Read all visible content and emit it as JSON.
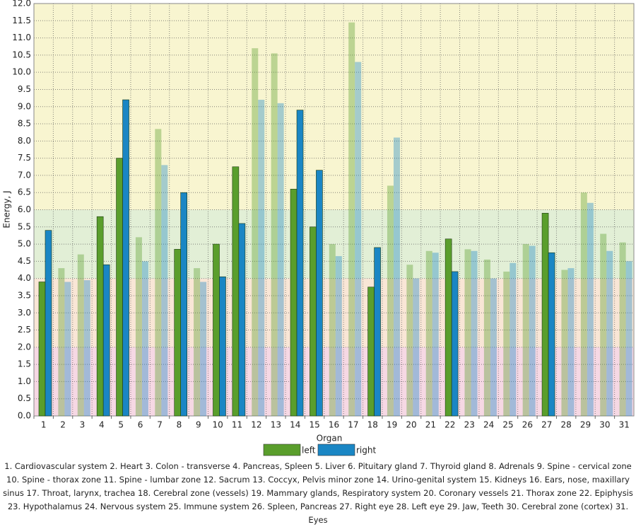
{
  "chart_data": {
    "type": "bar",
    "y_label": "Energy, J",
    "x_label": "Organ",
    "categories": [
      "1",
      "2",
      "3",
      "4",
      "5",
      "6",
      "7",
      "8",
      "9",
      "10",
      "11",
      "12",
      "13",
      "14",
      "15",
      "16",
      "17",
      "18",
      "19",
      "20",
      "21",
      "22",
      "23",
      "24",
      "25",
      "26",
      "27",
      "28",
      "29",
      "30",
      "31"
    ],
    "series": [
      {
        "name": "left",
        "color": "#5a9e2c",
        "values": [
          3.9,
          4.3,
          4.7,
          5.8,
          7.5,
          5.2,
          8.35,
          4.85,
          4.3,
          5.0,
          7.25,
          10.7,
          10.55,
          6.6,
          5.5,
          5.0,
          11.45,
          3.75,
          6.7,
          4.4,
          4.8,
          5.15,
          4.85,
          4.55,
          4.2,
          5.0,
          5.9,
          4.25,
          6.5,
          5.3,
          5.05
        ]
      },
      {
        "name": "right",
        "color": "#1a86c4",
        "values": [
          5.4,
          3.9,
          3.95,
          4.4,
          9.2,
          4.5,
          7.3,
          6.5,
          3.9,
          4.05,
          5.6,
          9.2,
          9.1,
          8.9,
          7.15,
          4.65,
          10.3,
          4.9,
          8.1,
          4.0,
          4.75,
          4.2,
          4.8,
          4.0,
          4.45,
          4.95,
          4.75,
          4.3,
          6.2,
          4.8,
          4.5
        ]
      }
    ],
    "emphasized": [
      true,
      false,
      false,
      true,
      true,
      false,
      false,
      true,
      false,
      true,
      true,
      false,
      false,
      true,
      true,
      false,
      false,
      true,
      false,
      false,
      false,
      true,
      false,
      false,
      false,
      false,
      true,
      false,
      false,
      false,
      false
    ],
    "bands": [
      {
        "range": [
          0,
          2
        ],
        "color": "#f6d8e4"
      },
      {
        "range": [
          2,
          4
        ],
        "color": "#f9e6d6"
      },
      {
        "range": [
          4,
          6
        ],
        "color": "#e2efd6"
      },
      {
        "range": [
          6,
          12
        ],
        "color": "#f8f5d0"
      }
    ],
    "ylim": [
      0,
      12
    ],
    "yticks": [
      {
        "value": 0,
        "label": "0.0"
      },
      {
        "value": 0.5,
        "label": "0.5"
      },
      {
        "value": 1,
        "label": "1.0"
      },
      {
        "value": 1.5,
        "label": "1.5"
      },
      {
        "value": 2,
        "label": "2.0"
      },
      {
        "value": 2.5,
        "label": "2.5"
      },
      {
        "value": 3,
        "label": "3.0"
      },
      {
        "value": 3.5,
        "label": "3.5"
      },
      {
        "value": 4,
        "label": "4.0"
      },
      {
        "value": 4.5,
        "label": "4.5"
      },
      {
        "value": 5,
        "label": "5.0"
      },
      {
        "value": 5.5,
        "label": "5.5"
      },
      {
        "value": 6,
        "label": "6.0"
      },
      {
        "value": 6.5,
        "label": "6.5"
      },
      {
        "value": 7,
        "label": "7.0"
      },
      {
        "value": 7.5,
        "label": "7.5"
      },
      {
        "value": 8,
        "label": "8.0"
      },
      {
        "value": 8.5,
        "label": "8.5"
      },
      {
        "value": 9,
        "label": "9.0"
      },
      {
        "value": 9.5,
        "label": "9.5"
      },
      {
        "value": 10,
        "label": "10.0"
      },
      {
        "value": 10.5,
        "label": "10.5"
      },
      {
        "value": 11,
        "label": "11.0"
      },
      {
        "value": 11.5,
        "label": "11.5"
      },
      {
        "value": 12,
        "label": "12.0"
      }
    ],
    "grid": true,
    "caption": "1. Cardiovascular system  2. Heart  3. Colon - transverse  4. Pancreas, Spleen  5. Liver  6. Pituitary gland  7. Thyroid gland  8. Adrenals  9. Spine - cervical zone  10. Spine - thorax zone  11. Spine - lumbar zone  12. Sacrum  13. Coccyx, Pelvis minor zone  14. Urino-genital system  15. Kidneys  16. Ears, nose, maxillary sinus  17. Throat, larynx, trachea  18. Cerebral zone (vessels)  19. Mammary glands, Respiratory system  20. Coronary vessels  21. Thorax zone  22. Epiphysis  23. Hypothalamus  24. Nervous system  25. Immune system  26. Spleen, Pancreas  27. Right eye  28. Left eye  29. Jaw, Teeth  30. Cerebral zone (cortex)  31. Eyes"
  }
}
